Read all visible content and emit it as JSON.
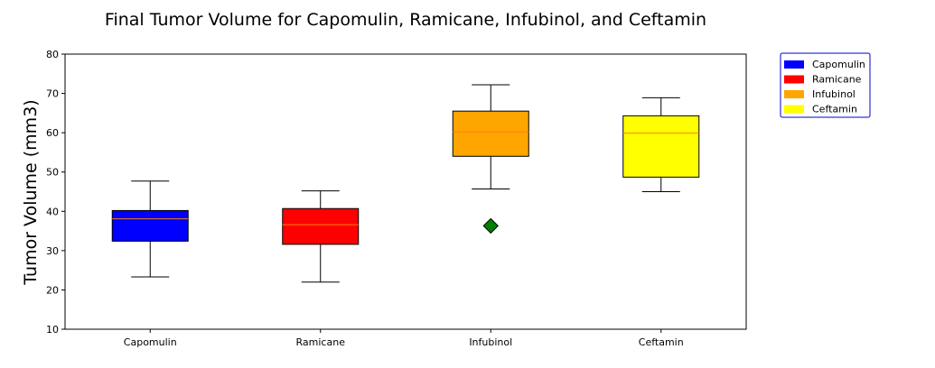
{
  "chart_data": {
    "type": "box",
    "title": "Final Tumor Volume for Capomulin, Ramicane, Infubinol, and Ceftamin",
    "xlabel": "",
    "ylabel": "Tumor Volume (mm3)",
    "ylim": [
      10,
      80
    ],
    "yticks": [
      10,
      20,
      30,
      40,
      50,
      60,
      70,
      80
    ],
    "grid": false,
    "legend_position": "outside-upper-right",
    "categories": [
      "Capomulin",
      "Ramicane",
      "Infubinol",
      "Ceftamin"
    ],
    "boxes": [
      {
        "name": "Capomulin",
        "color": "#0000ff",
        "whisker_low": 23.3,
        "q1": 32.4,
        "median": 38.1,
        "q3": 40.2,
        "whisker_high": 47.7,
        "outliers": []
      },
      {
        "name": "Ramicane",
        "color": "#ff0000",
        "whisker_low": 22.0,
        "q1": 31.6,
        "median": 36.6,
        "q3": 40.7,
        "whisker_high": 45.2,
        "outliers": []
      },
      {
        "name": "Infubinol",
        "color": "#ffa500",
        "whisker_low": 45.7,
        "q1": 54.0,
        "median": 60.2,
        "q3": 65.5,
        "whisker_high": 72.2,
        "outliers": [
          36.3
        ]
      },
      {
        "name": "Ceftamin",
        "color": "#ffff00",
        "whisker_low": 45.0,
        "q1": 48.7,
        "median": 59.9,
        "q3": 64.3,
        "whisker_high": 68.9,
        "outliers": []
      }
    ],
    "median_color": "#ff7f0e",
    "outlier_color": "#008000",
    "outlier_marker": "diamond",
    "legend": [
      {
        "label": "Capomulin",
        "color": "#0000ff"
      },
      {
        "label": "Ramicane",
        "color": "#ff0000"
      },
      {
        "label": "Infubinol",
        "color": "#ffa500"
      },
      {
        "label": "Ceftamin",
        "color": "#ffff00"
      }
    ],
    "legend_border_color": "#0000cc"
  }
}
